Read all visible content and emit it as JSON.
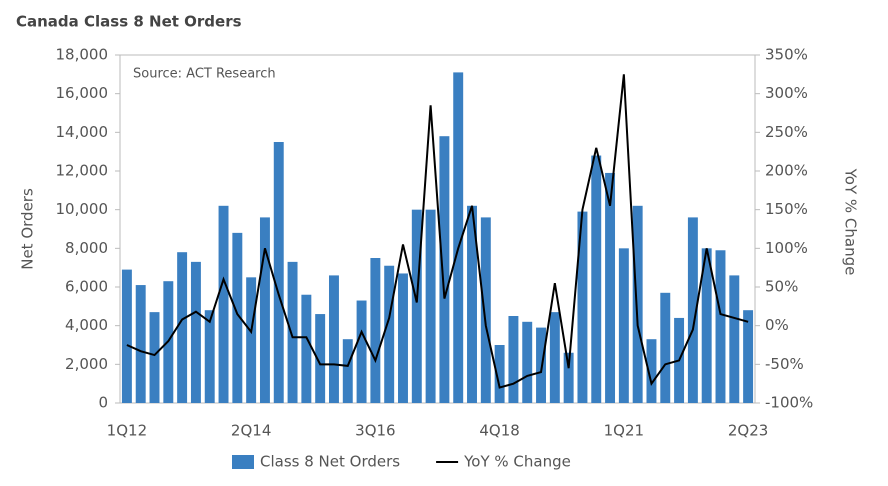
{
  "chart_data": {
    "type": "bar_line",
    "title": "Canada Class 8 Net Orders",
    "annotation": "Source: ACT Research",
    "y_label": "Net Orders",
    "y2_label": "YoY % Change",
    "categories": [
      "1Q12",
      null,
      null,
      null,
      null,
      null,
      null,
      null,
      null,
      "2Q14",
      null,
      null,
      null,
      null,
      null,
      null,
      null,
      null,
      "3Q16",
      null,
      null,
      null,
      null,
      null,
      null,
      null,
      null,
      "4Q18",
      null,
      null,
      null,
      null,
      null,
      null,
      null,
      null,
      "1Q21",
      null,
      null,
      null,
      null,
      null,
      null,
      null,
      null,
      "2Q23"
    ],
    "series": [
      {
        "name": "Class 8 Net Orders",
        "color": "#3a7fc1",
        "kind": "bar",
        "values": [
          6900,
          6100,
          4700,
          6300,
          7800,
          7300,
          4800,
          10200,
          8800,
          6500,
          9600,
          13500,
          7300,
          5600,
          4600,
          6600,
          3300,
          5300,
          7500,
          7100,
          6700,
          10000,
          10000,
          13800,
          17100,
          10200,
          9600,
          3000,
          4500,
          4200,
          3900,
          4700,
          2600,
          9900,
          12800,
          11900,
          8000,
          10200,
          3300,
          5700,
          4400,
          9600,
          8000,
          7900,
          6600,
          4800
        ]
      },
      {
        "name": "YoY % Change",
        "color": "#000000",
        "kind": "line",
        "axis": "y2",
        "values": [
          -25,
          -33,
          -38,
          -20,
          8,
          18,
          5,
          60,
          15,
          -8,
          100,
          40,
          -15,
          -15,
          -50,
          -50,
          -52,
          -8,
          -45,
          10,
          105,
          30,
          285,
          35,
          100,
          155,
          0,
          -80,
          -75,
          -65,
          -60,
          55,
          -55,
          150,
          230,
          155,
          325,
          0,
          -75,
          -50,
          -45,
          -5,
          100,
          15,
          10,
          5
        ]
      }
    ],
    "ylim": [
      0,
      18000
    ],
    "yticks": [
      0,
      {
        "value": 2000,
        "label": "2,000"
      },
      {
        "value": 4000,
        "label": "4,000"
      },
      {
        "value": 6000,
        "label": "6,000"
      },
      {
        "value": 8000,
        "label": "8,000"
      },
      {
        "value": 10000,
        "label": "10,000"
      },
      {
        "value": 12000,
        "label": "12,000"
      },
      {
        "value": 14000,
        "label": "14,000"
      },
      {
        "value": 16000,
        "label": "16,000"
      },
      {
        "value": 18000,
        "label": "18,000"
      }
    ],
    "y2lim": [
      -100,
      350
    ],
    "y2ticks": [
      {
        "value": -100,
        "label": "-100%"
      },
      {
        "value": -50,
        "label": "-50%"
      },
      {
        "value": 0,
        "label": "0%"
      },
      {
        "value": 50,
        "label": "50%"
      },
      {
        "value": 100,
        "label": "100%"
      },
      {
        "value": 150,
        "label": "150%"
      },
      {
        "value": 200,
        "label": "200%"
      },
      {
        "value": 250,
        "label": "250%"
      },
      {
        "value": 300,
        "label": "300%"
      },
      {
        "value": 350,
        "label": "350%"
      }
    ]
  }
}
